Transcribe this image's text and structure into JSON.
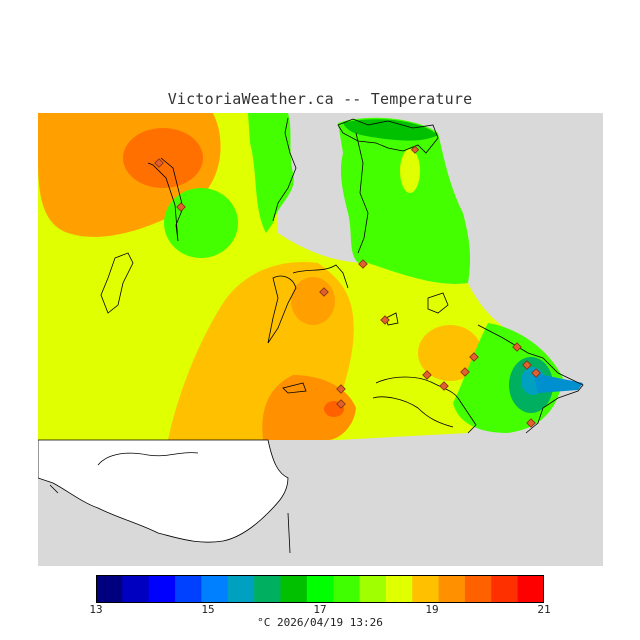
{
  "header": {
    "title": "VictoriaWeather.ca -- Temperature"
  },
  "legend": {
    "colors": [
      "#00007f",
      "#0000c0",
      "#0000ff",
      "#0040ff",
      "#0080ff",
      "#00a0c0",
      "#00b060",
      "#00c000",
      "#00ff00",
      "#40ff00",
      "#a0ff00",
      "#e0ff00",
      "#ffc000",
      "#ff9000",
      "#ff6000",
      "#ff3000",
      "#ff0000"
    ],
    "ticks": [
      {
        "label": "13",
        "value": 13
      },
      {
        "label": "15",
        "value": 15
      },
      {
        "label": "17",
        "value": 17
      },
      {
        "label": "19",
        "value": 19
      },
      {
        "label": "21",
        "value": 21
      }
    ],
    "min": 13,
    "max": 21,
    "unit": "°C"
  },
  "footer": {
    "timestamp": "°C   2026/04/19 13:26"
  },
  "map": {
    "background_color": "#d9d9d9",
    "land_white_color": "#ffffff",
    "station_marker_color": "#e08040",
    "stations": 16
  }
}
